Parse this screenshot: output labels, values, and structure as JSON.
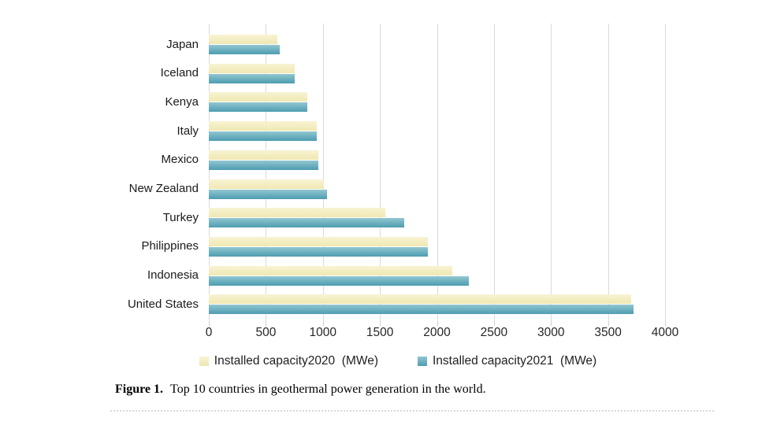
{
  "figure": {
    "caption_label": "Figure 1.",
    "caption_text": "Top 10 countries in geothermal power generation in the world."
  },
  "chart_data": {
    "type": "bar",
    "orientation": "horizontal",
    "title": "",
    "xlabel": "",
    "ylabel": "",
    "xlim": [
      0,
      4000
    ],
    "xticks": [
      0,
      500,
      1000,
      1500,
      2000,
      2500,
      3000,
      3500,
      4000
    ],
    "grid": "vertical",
    "legend_position": "bottom",
    "categories": [
      "Japan",
      "Iceland",
      "Kenya",
      "Italy",
      "Mexico",
      "New Zealand",
      "Turkey",
      "Philippines",
      "Indonesia",
      "United States"
    ],
    "series": [
      {
        "name": "Installed capacity2020  (MWe)",
        "values": [
          603,
          755,
          861,
          944,
          963,
          1005,
          1549,
          1918,
          2131,
          3700
        ],
        "color_top": "#F8F3D3",
        "color_bottom": "#EFE8B2"
      },
      {
        "name": "Installed capacity2021  (MWe)",
        "values": [
          621,
          754,
          861,
          944,
          963,
          1037,
          1710,
          1918,
          2276,
          3722
        ],
        "color_top": "#92C7D0",
        "color_bottom": "#4D9CB0"
      }
    ],
    "colors": {
      "gridline": "#DADADA",
      "tick_text": "#262626",
      "category_text": "#1a1a1a"
    }
  }
}
